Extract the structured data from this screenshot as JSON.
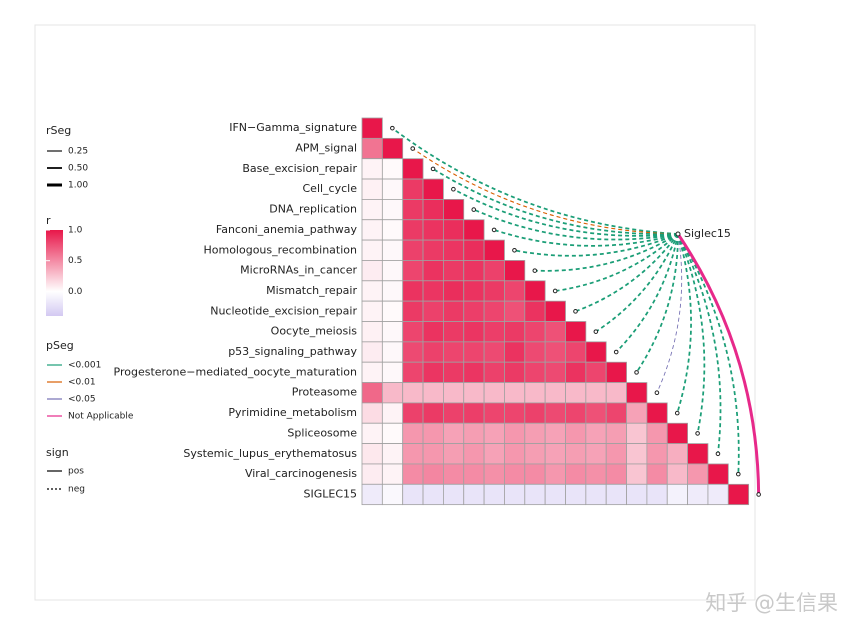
{
  "chart_data": {
    "type": "heatmap",
    "rows": [
      "IFN−Gamma_signature",
      "APM_signal",
      "Base_excision_repair",
      "Cell_cycle",
      "DNA_replication",
      "Fanconi_anemia_pathway",
      "Homologous_recombination",
      "MicroRNAs_in_cancer",
      "Mismatch_repair",
      "Nucleotide_excision_repair",
      "Oocyte_meiosis",
      "p53_signaling_pathway",
      "Progesterone−mediated_oocyte_maturation",
      "Proteasome",
      "Pyrimidine_metabolism",
      "Spliceosome",
      "Systemic_lupus_erythematosus",
      "Viral_carcinogenesis",
      "SIGLEC15"
    ],
    "values": [
      [
        1
      ],
      [
        0.6,
        1
      ],
      [
        0.05,
        0.02,
        1
      ],
      [
        0.06,
        0.03,
        0.85,
        1
      ],
      [
        0.05,
        0.03,
        0.85,
        0.9,
        1
      ],
      [
        0.05,
        0.02,
        0.85,
        0.88,
        0.9,
        1
      ],
      [
        0.05,
        0.03,
        0.82,
        0.85,
        0.87,
        0.9,
        1
      ],
      [
        0.08,
        0.03,
        0.8,
        0.88,
        0.85,
        0.87,
        0.82,
        1
      ],
      [
        0.05,
        0.03,
        0.88,
        0.87,
        0.9,
        0.88,
        0.85,
        0.8,
        1
      ],
      [
        0.05,
        0.02,
        0.85,
        0.82,
        0.85,
        0.83,
        0.8,
        0.75,
        0.88,
        1
      ],
      [
        0.06,
        0.03,
        0.8,
        0.88,
        0.85,
        0.87,
        0.83,
        0.85,
        0.8,
        0.75,
        1
      ],
      [
        0.08,
        0.03,
        0.78,
        0.82,
        0.8,
        0.8,
        0.78,
        0.88,
        0.78,
        0.75,
        0.8,
        1
      ],
      [
        0.05,
        0.03,
        0.8,
        0.87,
        0.85,
        0.87,
        0.82,
        0.85,
        0.8,
        0.78,
        0.88,
        0.8,
        1
      ],
      [
        0.65,
        0.3,
        0.3,
        0.3,
        0.3,
        0.3,
        0.3,
        0.3,
        0.3,
        0.3,
        0.3,
        0.3,
        0.3,
        1
      ],
      [
        0.15,
        0.05,
        0.82,
        0.85,
        0.82,
        0.83,
        0.8,
        0.8,
        0.82,
        0.78,
        0.8,
        0.75,
        0.8,
        0.4,
        1
      ],
      [
        0.05,
        0.02,
        0.45,
        0.45,
        0.4,
        0.42,
        0.4,
        0.45,
        0.42,
        0.4,
        0.45,
        0.4,
        0.42,
        0.25,
        0.45,
        1
      ],
      [
        0.1,
        0.05,
        0.45,
        0.45,
        0.42,
        0.45,
        0.4,
        0.45,
        0.42,
        0.4,
        0.42,
        0.4,
        0.45,
        0.25,
        0.45,
        0.35,
        1
      ],
      [
        0.08,
        0.05,
        0.5,
        0.52,
        0.5,
        0.5,
        0.48,
        0.5,
        0.5,
        0.45,
        0.5,
        0.48,
        0.5,
        0.25,
        0.5,
        0.3,
        0.45,
        1
      ],
      [
        -0.15,
        -0.05,
        -0.2,
        -0.2,
        -0.2,
        -0.2,
        -0.2,
        -0.2,
        -0.2,
        -0.2,
        -0.2,
        -0.2,
        -0.2,
        -0.2,
        -0.2,
        -0.1,
        -0.15,
        -0.15,
        1
      ]
    ],
    "colors": [
      "#d3c9f2",
      "#ffffff",
      "#e8174a"
    ],
    "clim": [
      -0.4,
      1
    ],
    "r_legend": {
      "title": "r",
      "ticks": [
        {
          "value": 1,
          "label": "1.0"
        },
        {
          "value": 0.5,
          "label": "0.5"
        },
        {
          "value": 0,
          "label": "0.0"
        }
      ]
    },
    "node": "Siglec15",
    "link_r": [
      -0.5,
      -0.25,
      -0.5,
      -0.5,
      -0.5,
      -0.5,
      -0.5,
      -0.5,
      -0.5,
      -0.5,
      -0.5,
      -0.5,
      -0.5,
      -0.15,
      -0.5,
      -0.5,
      -0.5,
      -0.5,
      1
    ],
    "link_p": [
      0,
      1,
      0,
      0,
      0,
      0,
      0,
      0,
      0,
      0,
      0,
      0,
      0,
      2,
      0,
      0,
      0,
      0,
      3
    ],
    "rseg_legend": {
      "title": "rSeg",
      "values": [
        0.25,
        {
          "value": 0.5,
          "label": "0.50"
        },
        {
          "value": 1,
          "label": "1.00"
        }
      ]
    },
    "pseg_legend": {
      "title": "pSeg",
      "labels": [
        "<0.001",
        "<0.01",
        "<0.05",
        "Not Applicable"
      ],
      "colors": [
        "#1b9e77",
        "#d95f02",
        "#7570b3",
        "#e7298a"
      ]
    },
    "sign_legend": {
      "title": "sign",
      "labels": [
        "pos",
        "neg"
      ]
    },
    "watermark": "知乎 @生信果"
  }
}
